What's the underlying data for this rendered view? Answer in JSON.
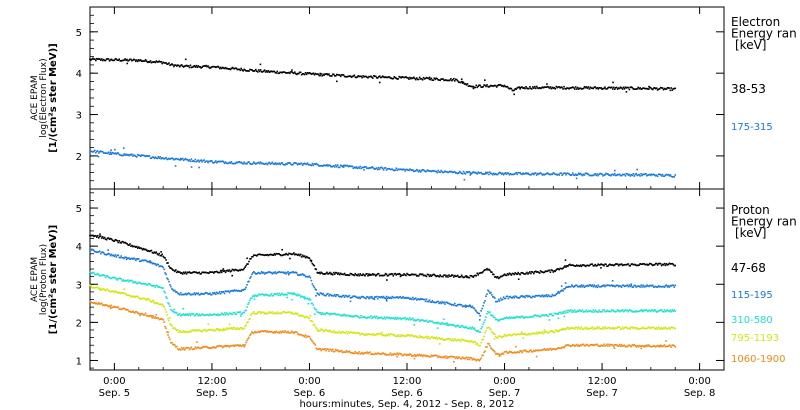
{
  "chart_data": [
    {
      "type": "scatter",
      "panel": "electron",
      "ylabel_lines": [
        "ACE EPAM",
        "log(Electron Flux)",
        "[1/(cm²s ster MeV)]"
      ],
      "legend_title_lines": [
        "Electron",
        "Energy ran",
        "[keV]"
      ],
      "legend_position": "right",
      "ylim": [
        1.2,
        5.6
      ],
      "yticks": [
        2,
        3,
        4,
        5
      ],
      "series": [
        {
          "name": "38-53",
          "color": "#000000",
          "points": [
            [
              -3,
              4.33
            ],
            [
              3,
              4.31
            ],
            [
              6,
              4.26
            ],
            [
              7,
              4.2
            ],
            [
              8,
              4.17
            ],
            [
              12,
              4.15
            ],
            [
              18,
              4.05
            ],
            [
              24,
              3.98
            ],
            [
              30,
              3.92
            ],
            [
              36,
              3.88
            ],
            [
              42,
              3.84
            ],
            [
              44,
              3.68
            ],
            [
              48,
              3.7
            ],
            [
              49,
              3.58
            ],
            [
              50,
              3.65
            ],
            [
              54,
              3.65
            ],
            [
              60,
              3.64
            ],
            [
              66,
              3.63
            ],
            [
              69,
              3.61
            ]
          ]
        },
        {
          "name": "175-315",
          "color": "#1a78d8",
          "points": [
            [
              -3,
              2.12
            ],
            [
              0,
              2.05
            ],
            [
              6,
              1.95
            ],
            [
              12,
              1.86
            ],
            [
              18,
              1.82
            ],
            [
              24,
              1.8
            ],
            [
              30,
              1.72
            ],
            [
              36,
              1.66
            ],
            [
              42,
              1.6
            ],
            [
              48,
              1.57
            ],
            [
              54,
              1.56
            ],
            [
              60,
              1.55
            ],
            [
              66,
              1.54
            ],
            [
              69,
              1.52
            ]
          ]
        }
      ]
    },
    {
      "type": "scatter",
      "panel": "proton",
      "ylabel_lines": [
        "ACE EPAM",
        "log(Proton Flux)",
        "[1/(cm²s ster MeV)]"
      ],
      "legend_title_lines": [
        "Proton",
        "Energy ran",
        "[keV]"
      ],
      "legend_position": "right",
      "ylim": [
        0.75,
        5.5
      ],
      "yticks": [
        1,
        2,
        3,
        4,
        5
      ],
      "xlabel": "hours:minutes, Sep.  4, 2012 - Sep.  8, 2012",
      "xlim": [
        -3,
        75
      ],
      "xticks": [
        {
          "t": 0,
          "time": "0:00",
          "date": "Sep. 5"
        },
        {
          "t": 12,
          "time": "12:00",
          "date": "Sep. 5"
        },
        {
          "t": 24,
          "time": "0:00",
          "date": "Sep. 6"
        },
        {
          "t": 36,
          "time": "12:00",
          "date": "Sep. 6"
        },
        {
          "t": 48,
          "time": "0:00",
          "date": "Sep. 7"
        },
        {
          "t": 60,
          "time": "12:00",
          "date": "Sep. 7"
        },
        {
          "t": 72,
          "time": "0:00",
          "date": "Sep. 8"
        }
      ],
      "series": [
        {
          "name": "47-68",
          "color": "#000000",
          "points": [
            [
              -3,
              4.3
            ],
            [
              0,
              4.15
            ],
            [
              4,
              3.9
            ],
            [
              6,
              3.75
            ],
            [
              7,
              3.4
            ],
            [
              8,
              3.3
            ],
            [
              12,
              3.3
            ],
            [
              16,
              3.4
            ],
            [
              17,
              3.75
            ],
            [
              22,
              3.8
            ],
            [
              24,
              3.7
            ],
            [
              25,
              3.3
            ],
            [
              30,
              3.25
            ],
            [
              36,
              3.25
            ],
            [
              44,
              3.2
            ],
            [
              46,
              3.4
            ],
            [
              47,
              3.15
            ],
            [
              48,
              3.25
            ],
            [
              54,
              3.35
            ],
            [
              56,
              3.5
            ],
            [
              60,
              3.5
            ],
            [
              66,
              3.52
            ],
            [
              69,
              3.52
            ]
          ]
        },
        {
          "name": "115-195",
          "color": "#1a78d8",
          "points": [
            [
              -3,
              3.9
            ],
            [
              0,
              3.75
            ],
            [
              4,
              3.6
            ],
            [
              6,
              3.45
            ],
            [
              7,
              2.9
            ],
            [
              8,
              2.75
            ],
            [
              12,
              2.75
            ],
            [
              16,
              2.85
            ],
            [
              17,
              3.3
            ],
            [
              22,
              3.3
            ],
            [
              24,
              3.2
            ],
            [
              25,
              2.75
            ],
            [
              30,
              2.65
            ],
            [
              36,
              2.65
            ],
            [
              44,
              2.4
            ],
            [
              45,
              2.2
            ],
            [
              46,
              2.85
            ],
            [
              47,
              2.55
            ],
            [
              48,
              2.65
            ],
            [
              54,
              2.7
            ],
            [
              56,
              2.95
            ],
            [
              60,
              2.95
            ],
            [
              66,
              2.95
            ],
            [
              69,
              2.95
            ]
          ]
        },
        {
          "name": "310-580",
          "color": "#1ee0d0",
          "points": [
            [
              -3,
              3.3
            ],
            [
              0,
              3.15
            ],
            [
              4,
              3.0
            ],
            [
              6,
              2.9
            ],
            [
              7,
              2.3
            ],
            [
              8,
              2.2
            ],
            [
              12,
              2.2
            ],
            [
              16,
              2.25
            ],
            [
              17,
              2.7
            ],
            [
              22,
              2.75
            ],
            [
              24,
              2.6
            ],
            [
              25,
              2.25
            ],
            [
              30,
              2.15
            ],
            [
              36,
              2.1
            ],
            [
              44,
              1.85
            ],
            [
              45,
              1.75
            ],
            [
              46,
              2.3
            ],
            [
              47,
              2.05
            ],
            [
              48,
              2.1
            ],
            [
              54,
              2.2
            ],
            [
              56,
              2.3
            ],
            [
              60,
              2.3
            ],
            [
              66,
              2.3
            ],
            [
              69,
              2.3
            ]
          ]
        },
        {
          "name": "795-1193",
          "color": "#d2e614",
          "points": [
            [
              -3,
              2.95
            ],
            [
              0,
              2.8
            ],
            [
              4,
              2.6
            ],
            [
              6,
              2.45
            ],
            [
              7,
              1.9
            ],
            [
              8,
              1.75
            ],
            [
              12,
              1.8
            ],
            [
              16,
              1.85
            ],
            [
              17,
              2.25
            ],
            [
              22,
              2.25
            ],
            [
              24,
              2.1
            ],
            [
              25,
              1.8
            ],
            [
              30,
              1.7
            ],
            [
              36,
              1.65
            ],
            [
              44,
              1.5
            ],
            [
              45,
              1.4
            ],
            [
              46,
              1.9
            ],
            [
              47,
              1.6
            ],
            [
              48,
              1.65
            ],
            [
              54,
              1.75
            ],
            [
              56,
              1.85
            ],
            [
              60,
              1.85
            ],
            [
              66,
              1.85
            ],
            [
              69,
              1.85
            ]
          ]
        },
        {
          "name": "1060-1900",
          "color": "#f08a1a",
          "points": [
            [
              -3,
              2.55
            ],
            [
              0,
              2.4
            ],
            [
              4,
              2.2
            ],
            [
              6,
              2.05
            ],
            [
              7,
              1.45
            ],
            [
              8,
              1.3
            ],
            [
              12,
              1.35
            ],
            [
              16,
              1.4
            ],
            [
              17,
              1.75
            ],
            [
              22,
              1.75
            ],
            [
              24,
              1.6
            ],
            [
              25,
              1.3
            ],
            [
              30,
              1.2
            ],
            [
              36,
              1.15
            ],
            [
              44,
              1.05
            ],
            [
              45,
              1.0
            ],
            [
              46,
              1.45
            ],
            [
              47,
              1.15
            ],
            [
              48,
              1.2
            ],
            [
              54,
              1.3
            ],
            [
              56,
              1.4
            ],
            [
              60,
              1.4
            ],
            [
              66,
              1.38
            ],
            [
              69,
              1.38
            ]
          ]
        }
      ]
    }
  ]
}
